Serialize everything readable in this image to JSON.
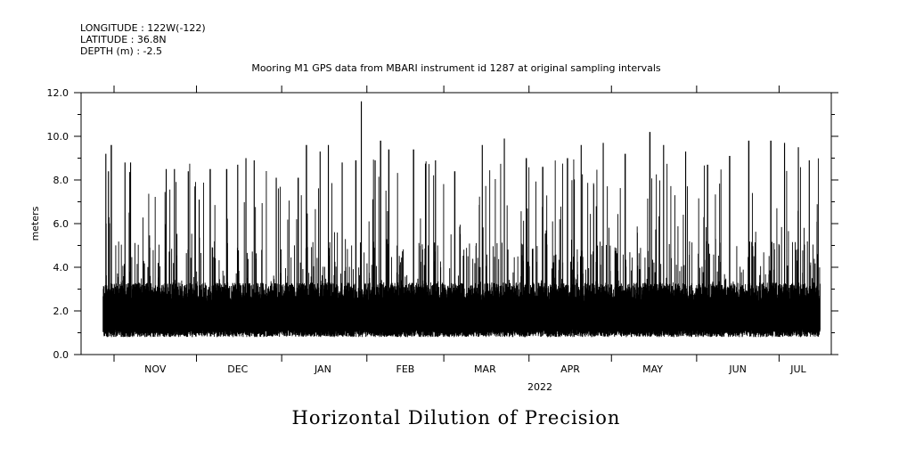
{
  "header": {
    "longitude": "LONGITUDE : 122W(-122)",
    "latitude": "LATITUDE : 36.8N",
    "depth": "DEPTH (m) : -2.5",
    "title": "Mooring M1 GPS data from MBARI instrument id 1287 at original sampling intervals"
  },
  "footer": {
    "caption": "Horizontal Dilution of Precision"
  },
  "chart_data": {
    "type": "line",
    "title": "Mooring M1 GPS data from MBARI instrument id 1287 at original sampling intervals",
    "xlabel": "2022",
    "ylabel": "meters",
    "ylim": [
      0,
      12
    ],
    "yticks": [
      "0.0",
      "2.0",
      "4.0",
      "6.0",
      "8.0",
      "10.0",
      "12.0"
    ],
    "xticks": [
      "NOV",
      "DEC",
      "JAN",
      "FEB",
      "MAR",
      "APR",
      "MAY",
      "JUN",
      "JUL"
    ],
    "x_range": [
      "2021-10-20",
      "2022-07-20"
    ],
    "data_range": [
      "2021-10-28",
      "2022-07-16"
    ],
    "grid": false,
    "series": [
      {
        "color": "#000000",
        "baseline_range": [
          0.8,
          2.8
        ],
        "peaks": [
          {
            "x": "2021-10-29",
            "y": 9.2
          },
          {
            "x": "2021-10-30",
            "y": 8.4
          },
          {
            "x": "2021-10-31",
            "y": 9.6
          },
          {
            "x": "2021-11-05",
            "y": 8.8
          },
          {
            "x": "2021-11-07",
            "y": 8.8
          },
          {
            "x": "2021-11-14",
            "y": 4.9
          },
          {
            "x": "2021-11-20",
            "y": 8.5
          },
          {
            "x": "2021-11-23",
            "y": 8.5
          },
          {
            "x": "2021-11-28",
            "y": 8.4
          },
          {
            "x": "2021-12-02",
            "y": 7.1
          },
          {
            "x": "2021-12-06",
            "y": 8.5
          },
          {
            "x": "2021-12-12",
            "y": 8.5
          },
          {
            "x": "2021-12-16",
            "y": 8.7
          },
          {
            "x": "2021-12-19",
            "y": 9.0
          },
          {
            "x": "2021-12-22",
            "y": 8.9
          },
          {
            "x": "2021-12-30",
            "y": 8.1
          },
          {
            "x": "2022-01-07",
            "y": 8.1
          },
          {
            "x": "2022-01-10",
            "y": 9.6
          },
          {
            "x": "2022-01-15",
            "y": 9.3
          },
          {
            "x": "2022-01-18",
            "y": 9.6
          },
          {
            "x": "2022-01-23",
            "y": 8.8
          },
          {
            "x": "2022-01-28",
            "y": 8.9
          },
          {
            "x": "2022-01-30",
            "y": 11.6
          },
          {
            "x": "2022-02-04",
            "y": 8.9
          },
          {
            "x": "2022-02-06",
            "y": 9.8
          },
          {
            "x": "2022-02-09",
            "y": 9.4
          },
          {
            "x": "2022-02-18",
            "y": 9.4
          },
          {
            "x": "2022-02-26",
            "y": 8.9
          },
          {
            "x": "2022-03-05",
            "y": 8.4
          },
          {
            "x": "2022-03-15",
            "y": 9.6
          },
          {
            "x": "2022-03-23",
            "y": 9.9
          },
          {
            "x": "2022-03-31",
            "y": 9.0
          },
          {
            "x": "2022-04-06",
            "y": 8.6
          },
          {
            "x": "2022-04-15",
            "y": 9.0
          },
          {
            "x": "2022-04-20",
            "y": 9.6
          },
          {
            "x": "2022-04-28",
            "y": 9.7
          },
          {
            "x": "2022-05-06",
            "y": 9.2
          },
          {
            "x": "2022-05-15",
            "y": 10.2
          },
          {
            "x": "2022-05-20",
            "y": 9.6
          },
          {
            "x": "2022-05-28",
            "y": 9.3
          },
          {
            "x": "2022-06-05",
            "y": 8.7
          },
          {
            "x": "2022-06-13",
            "y": 9.1
          },
          {
            "x": "2022-06-20",
            "y": 9.8
          },
          {
            "x": "2022-06-28",
            "y": 9.8
          },
          {
            "x": "2022-07-03",
            "y": 9.7
          },
          {
            "x": "2022-07-08",
            "y": 9.5
          },
          {
            "x": "2022-07-12",
            "y": 8.9
          },
          {
            "x": "2022-07-15",
            "y": 4.6
          }
        ]
      }
    ]
  }
}
